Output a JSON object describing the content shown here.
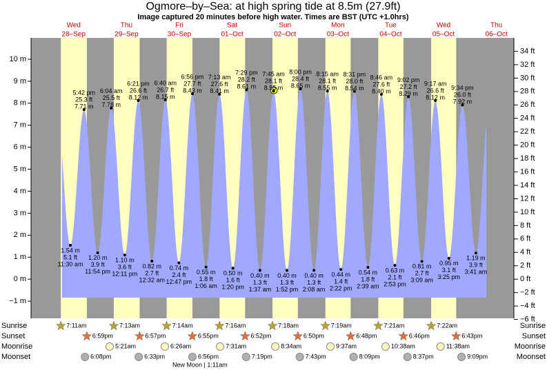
{
  "chart_data": {
    "type": "tide",
    "title": "Ogmore–by–Sea: at high  spring tide at 8.5m (27.9ft)",
    "subtitle": "Image captured 20 minutes before high water. Times are BST (UTC +1.0hrs)",
    "ylim": [
      -1.78,
      10.97
    ],
    "yticks": [
      {
        "value": -1,
        "label": "−1 m"
      },
      {
        "value": 0,
        "label": "0 m"
      },
      {
        "value": 1,
        "label": "1 m"
      },
      {
        "value": 2,
        "label": "2 m"
      },
      {
        "value": 3,
        "label": "3 m"
      },
      {
        "value": 4,
        "label": "4 m"
      },
      {
        "value": 5,
        "label": "5 m"
      },
      {
        "value": 6,
        "label": "6 m"
      },
      {
        "value": 7,
        "label": "7 m"
      },
      {
        "value": 8,
        "label": "8 m"
      },
      {
        "value": 9,
        "label": "9 m"
      },
      {
        "value": 10,
        "label": "10 m"
      }
    ],
    "y2lim": [
      -5.84,
      36.0
    ],
    "y2ticks": [
      {
        "value": -6,
        "label": "−6 ft"
      },
      {
        "value": -4,
        "label": "−4 ft"
      },
      {
        "value": -2,
        "label": "−2 ft"
      },
      {
        "value": 0,
        "label": "0 ft"
      },
      {
        "value": 2,
        "label": "2 ft"
      },
      {
        "value": 4,
        "label": "4 ft"
      },
      {
        "value": 6,
        "label": "6 ft"
      },
      {
        "value": 8,
        "label": "8 ft"
      },
      {
        "value": 10,
        "label": "10 ft"
      },
      {
        "value": 12,
        "label": "12 ft"
      },
      {
        "value": 14,
        "label": "14 ft"
      },
      {
        "value": 16,
        "label": "16 ft"
      },
      {
        "value": 18,
        "label": "18 ft"
      },
      {
        "value": 20,
        "label": "20 ft"
      },
      {
        "value": 22,
        "label": "22 ft"
      },
      {
        "value": 24,
        "label": "24 ft"
      },
      {
        "value": 26,
        "label": "26 ft"
      },
      {
        "value": 28,
        "label": "28 ft"
      },
      {
        "value": 30,
        "label": "30 ft"
      },
      {
        "value": 32,
        "label": "32 ft"
      },
      {
        "value": 34,
        "label": "34 ft"
      }
    ],
    "row_labels": [
      "Sunrise",
      "Sunset",
      "Moonrise",
      "Moonset"
    ],
    "moon_phase": "New Moon | 1:11am",
    "days": [
      {
        "weekday": "Wed",
        "date": "28–Sep",
        "sunrise": "7:11am",
        "sunset": "6:59pm",
        "moonrise": null,
        "moonset": "6:08pm",
        "tides": [
          {
            "time": "11:30 am",
            "values": [
              1.54,
              5.1
            ],
            "value_labels": [
              "1.54 m",
              "5.1 ft"
            ]
          },
          {
            "time": "5:42 pm",
            "values": [
              7.71,
              25.3
            ],
            "value_labels": [
              "7.71 m",
              "25.3 ft"
            ]
          },
          {
            "time": "11:54 pm",
            "values": [
              1.2,
              3.9
            ],
            "value_labels": [
              "1.20 m",
              "3.9 ft"
            ]
          }
        ]
      },
      {
        "weekday": "Thu",
        "date": "29–Sep",
        "sunrise": "7:13am",
        "sunset": "6:57pm",
        "moonrise": "5:21am",
        "moonset": "6:33pm",
        "tides": [
          {
            "time": "6:04 am",
            "values": [
              7.78,
              25.5
            ],
            "value_labels": [
              "7.78 m",
              "25.5 ft"
            ]
          },
          {
            "time": "12:11 pm",
            "values": [
              1.1,
              3.6
            ],
            "value_labels": [
              "1.10 m",
              "3.6 ft"
            ]
          },
          {
            "time": "6:21 pm",
            "values": [
              8.12,
              26.6
            ],
            "value_labels": [
              "8.12 m",
              "26.6 ft"
            ]
          }
        ]
      },
      {
        "weekday": "Fri",
        "date": "30–Sep",
        "sunrise": "7:14am",
        "sunset": "6:55pm",
        "moonrise": "6:26am",
        "moonset": "6:56pm",
        "tides": [
          {
            "time": "12:32 am",
            "values": [
              0.82,
              2.7
            ],
            "value_labels": [
              "0.82 m",
              "2.7 ft"
            ]
          },
          {
            "time": "6:40 am",
            "values": [
              8.15,
              26.7
            ],
            "value_labels": [
              "8.15 m",
              "26.7 ft"
            ]
          },
          {
            "time": "12:47 pm",
            "values": [
              0.74,
              2.4
            ],
            "value_labels": [
              "0.74 m",
              "2.4 ft"
            ]
          },
          {
            "time": "6:56 pm",
            "values": [
              8.43,
              27.7
            ],
            "value_labels": [
              "8.43 m",
              "27.7 ft"
            ]
          }
        ]
      },
      {
        "weekday": "Sat",
        "date": "01–Oct",
        "sunrise": "7:16am",
        "sunset": "6:52pm",
        "moonrise": "7:31am",
        "moonset": "7:19pm",
        "tides": [
          {
            "time": "1:06 am",
            "values": [
              0.55,
              1.8
            ],
            "value_labels": [
              "0.55 m",
              "1.8 ft"
            ]
          },
          {
            "time": "7:13 am",
            "values": [
              8.41,
              27.6
            ],
            "value_labels": [
              "8.41 m",
              "27.6 ft"
            ]
          },
          {
            "time": "1:20 pm",
            "values": [
              0.5,
              1.6
            ],
            "value_labels": [
              "0.50 m",
              "1.6 ft"
            ]
          },
          {
            "time": "7:29 pm",
            "values": [
              8.61,
              28.2
            ],
            "value_labels": [
              "8.61 m",
              "28.2 ft"
            ]
          }
        ]
      },
      {
        "weekday": "Sun",
        "date": "02–Oct",
        "sunrise": "7:18am",
        "sunset": "6:50pm",
        "moonrise": "8:34am",
        "moonset": "7:43pm",
        "tides": [
          {
            "time": "1:37 am",
            "values": [
              0.4,
              1.3
            ],
            "value_labels": [
              "0.40 m",
              "1.3 ft"
            ]
          },
          {
            "time": "7:45 am",
            "values": [
              8.55,
              28.1
            ],
            "value_labels": [
              "8.55 m",
              "28.1 ft"
            ]
          },
          {
            "time": "1:52 pm",
            "values": [
              0.4,
              1.3
            ],
            "value_labels": [
              "0.40 m",
              "1.3 ft"
            ]
          },
          {
            "time": "8:00 pm",
            "values": [
              8.65,
              28.4
            ],
            "value_labels": [
              "8.65 m",
              "28.4 ft"
            ]
          }
        ]
      },
      {
        "weekday": "Mon",
        "date": "03–Oct",
        "sunrise": "7:19am",
        "sunset": "6:48pm",
        "moonrise": "9:37am",
        "moonset": "8:09pm",
        "tides": [
          {
            "time": "2:08 am",
            "values": [
              0.4,
              1.3
            ],
            "value_labels": [
              "0.40 m",
              "1.3 ft"
            ]
          },
          {
            "time": "8:15 am",
            "values": [
              8.55,
              28.1
            ],
            "value_labels": [
              "8.55 m",
              "28.1 ft"
            ]
          },
          {
            "time": "2:22 pm",
            "values": [
              0.44,
              1.4
            ],
            "value_labels": [
              "0.44 m",
              "1.4 ft"
            ]
          },
          {
            "time": "8:31 pm",
            "values": [
              8.54,
              28.0
            ],
            "value_labels": [
              "8.54 m",
              "28.0 ft"
            ]
          }
        ]
      },
      {
        "weekday": "Tue",
        "date": "04–Oct",
        "sunrise": "7:21am",
        "sunset": "6:46pm",
        "moonrise": "10:38am",
        "moonset": "8:37pm",
        "tides": [
          {
            "time": "2:39 am",
            "values": [
              0.54,
              1.8
            ],
            "value_labels": [
              "0.54 m",
              "1.8 ft"
            ]
          },
          {
            "time": "8:46 am",
            "values": [
              8.4,
              27.6
            ],
            "value_labels": [
              "8.40 m",
              "27.6 ft"
            ]
          },
          {
            "time": "2:53 pm",
            "values": [
              0.63,
              2.1
            ],
            "value_labels": [
              "0.63 m",
              "2.1 ft"
            ]
          },
          {
            "time": "9:02 pm",
            "values": [
              8.29,
              27.2
            ],
            "value_labels": [
              "8.29 m",
              "27.2 ft"
            ]
          }
        ]
      },
      {
        "weekday": "Wed",
        "date": "05–Oct",
        "sunrise": "7:22am",
        "sunset": "6:43pm",
        "moonrise": "11:38am",
        "moonset": "9:09pm",
        "tides": [
          {
            "time": "3:09 am",
            "values": [
              0.81,
              2.7
            ],
            "value_labels": [
              "0.81 m",
              "2.7 ft"
            ]
          },
          {
            "time": "9:17 am",
            "values": [
              8.12,
              26.6
            ],
            "value_labels": [
              "8.12 m",
              "26.6 ft"
            ]
          },
          {
            "time": "3:25 pm",
            "values": [
              0.95,
              3.1
            ],
            "value_labels": [
              "0.95 m",
              "3.1 ft"
            ]
          },
          {
            "time": "9:34 pm",
            "values": [
              7.92,
              26.0
            ],
            "value_labels": [
              "7.92 m",
              "26.0 ft"
            ]
          }
        ]
      },
      {
        "weekday": "Thu",
        "date": "06–Oct",
        "sunrise": null,
        "sunset": null,
        "moonrise": null,
        "moonset": null,
        "tides": [
          {
            "time": "3:41 am",
            "values": [
              1.19,
              3.9
            ],
            "value_labels": [
              "1.19 m",
              "3.9 ft"
            ]
          }
        ]
      }
    ]
  }
}
